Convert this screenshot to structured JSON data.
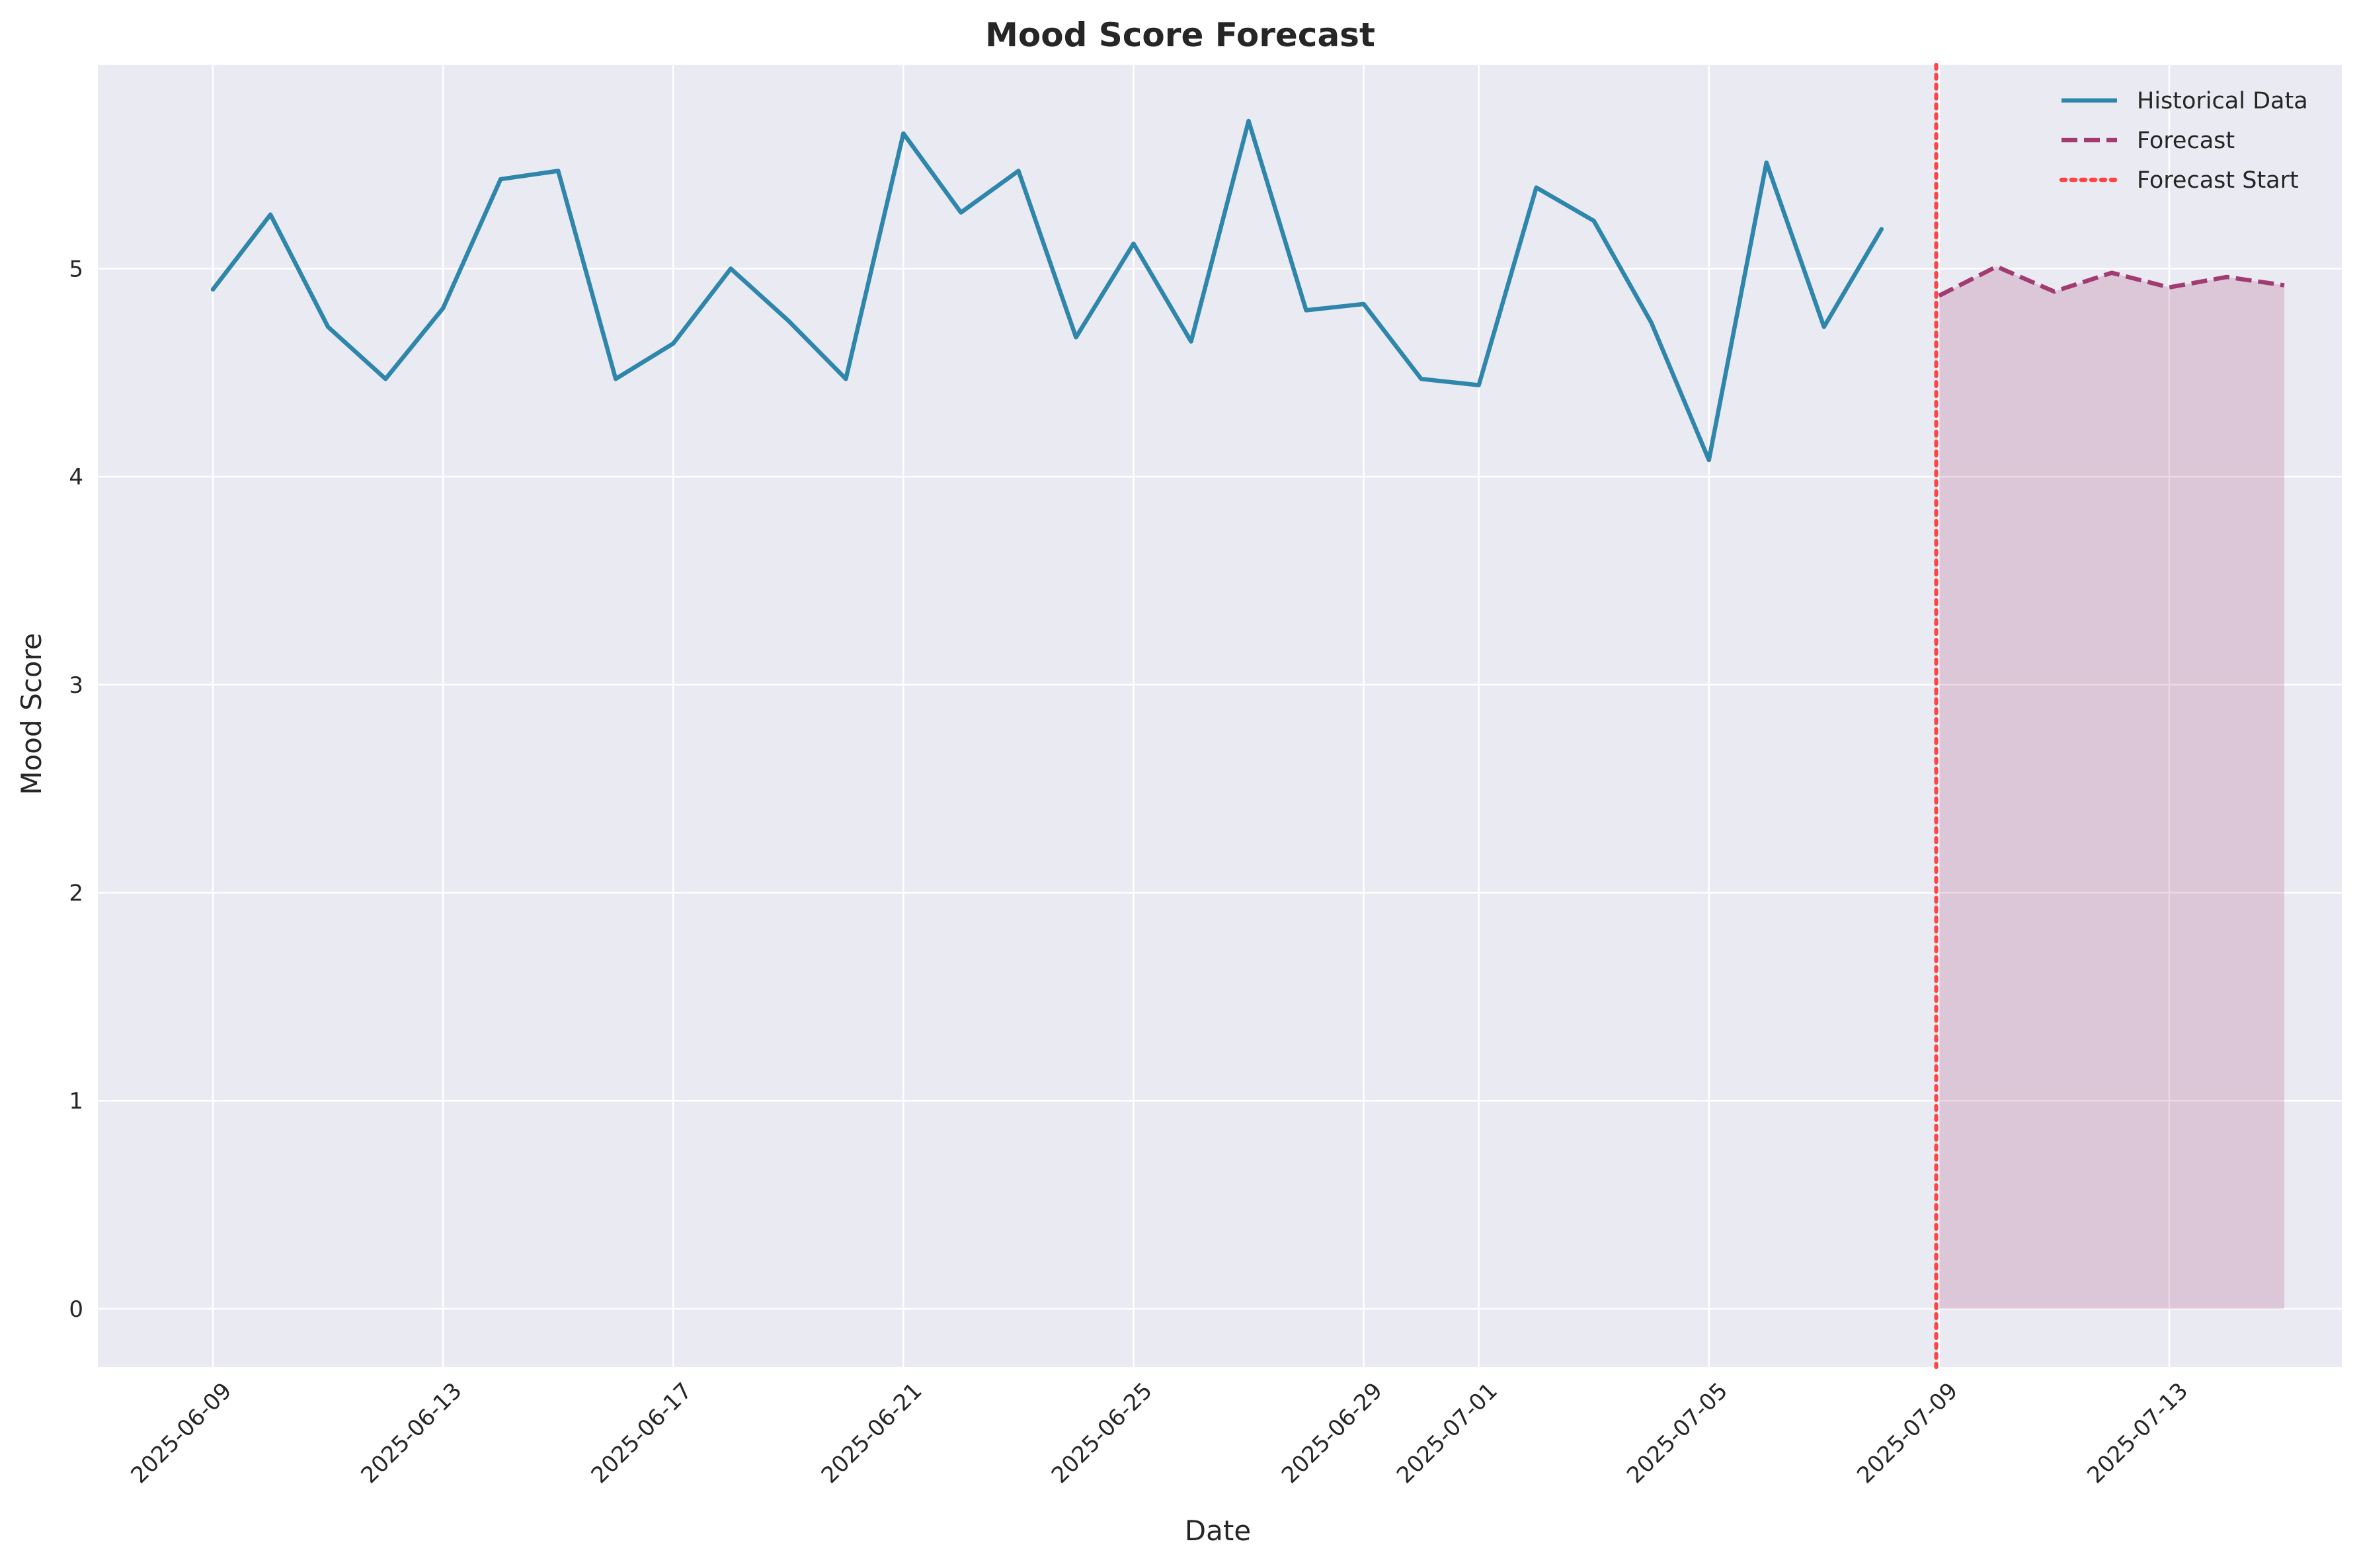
{
  "chart_data": {
    "type": "line",
    "title": "Mood Score Forecast",
    "xlabel": "Date",
    "ylabel": "Mood Score",
    "grid": true,
    "legend_position": "top-right",
    "xlim": [
      "2025-06-07",
      "2025-07-16"
    ],
    "ylim": [
      -0.28,
      5.98
    ],
    "x_ticks": [
      "2025-06-09",
      "2025-06-13",
      "2025-06-17",
      "2025-06-21",
      "2025-06-25",
      "2025-06-29",
      "2025-07-01",
      "2025-07-05",
      "2025-07-09",
      "2025-07-13"
    ],
    "y_ticks": [
      0,
      1,
      2,
      3,
      4,
      5
    ],
    "series": [
      {
        "name": "Historical Data",
        "style": "solid",
        "color": "#2E86AB",
        "x": [
          "2025-06-09",
          "2025-06-10",
          "2025-06-11",
          "2025-06-12",
          "2025-06-13",
          "2025-06-14",
          "2025-06-15",
          "2025-06-16",
          "2025-06-17",
          "2025-06-18",
          "2025-06-19",
          "2025-06-20",
          "2025-06-21",
          "2025-06-22",
          "2025-06-23",
          "2025-06-24",
          "2025-06-25",
          "2025-06-26",
          "2025-06-27",
          "2025-06-28",
          "2025-06-29",
          "2025-06-30",
          "2025-07-01",
          "2025-07-02",
          "2025-07-03",
          "2025-07-04",
          "2025-07-05",
          "2025-07-06",
          "2025-07-07",
          "2025-07-08"
        ],
        "values": [
          4.9,
          5.26,
          4.72,
          4.47,
          4.81,
          5.43,
          5.47,
          4.47,
          4.64,
          5.0,
          4.75,
          4.47,
          5.65,
          5.27,
          5.47,
          4.67,
          5.12,
          4.65,
          5.71,
          4.8,
          4.83,
          4.47,
          4.44,
          5.39,
          5.23,
          4.74,
          4.08,
          5.51,
          4.72,
          5.19
        ]
      },
      {
        "name": "Forecast",
        "style": "dashed",
        "color": "#A23B72",
        "x": [
          "2025-07-09",
          "2025-07-10",
          "2025-07-11",
          "2025-07-12",
          "2025-07-13",
          "2025-07-14",
          "2025-07-15"
        ],
        "values": [
          4.87,
          5.01,
          4.89,
          4.98,
          4.91,
          4.96,
          4.92
        ]
      }
    ],
    "forecast_band": {
      "x": [
        "2025-07-09",
        "2025-07-10",
        "2025-07-11",
        "2025-07-12",
        "2025-07-13",
        "2025-07-14",
        "2025-07-15"
      ],
      "lower": [
        0,
        0,
        0,
        0,
        0,
        0,
        0
      ],
      "upper": [
        4.87,
        5.01,
        4.89,
        4.98,
        4.91,
        4.96,
        4.92
      ],
      "color": "#A23B72",
      "opacity": 0.2
    },
    "forecast_start": {
      "name": "Forecast Start",
      "x": "2025-07-08.95",
      "color": "#FF4444",
      "style": "dotted"
    },
    "colors": {
      "plot_background": "#EAEAF2",
      "grid": "#FFFFFF"
    }
  }
}
